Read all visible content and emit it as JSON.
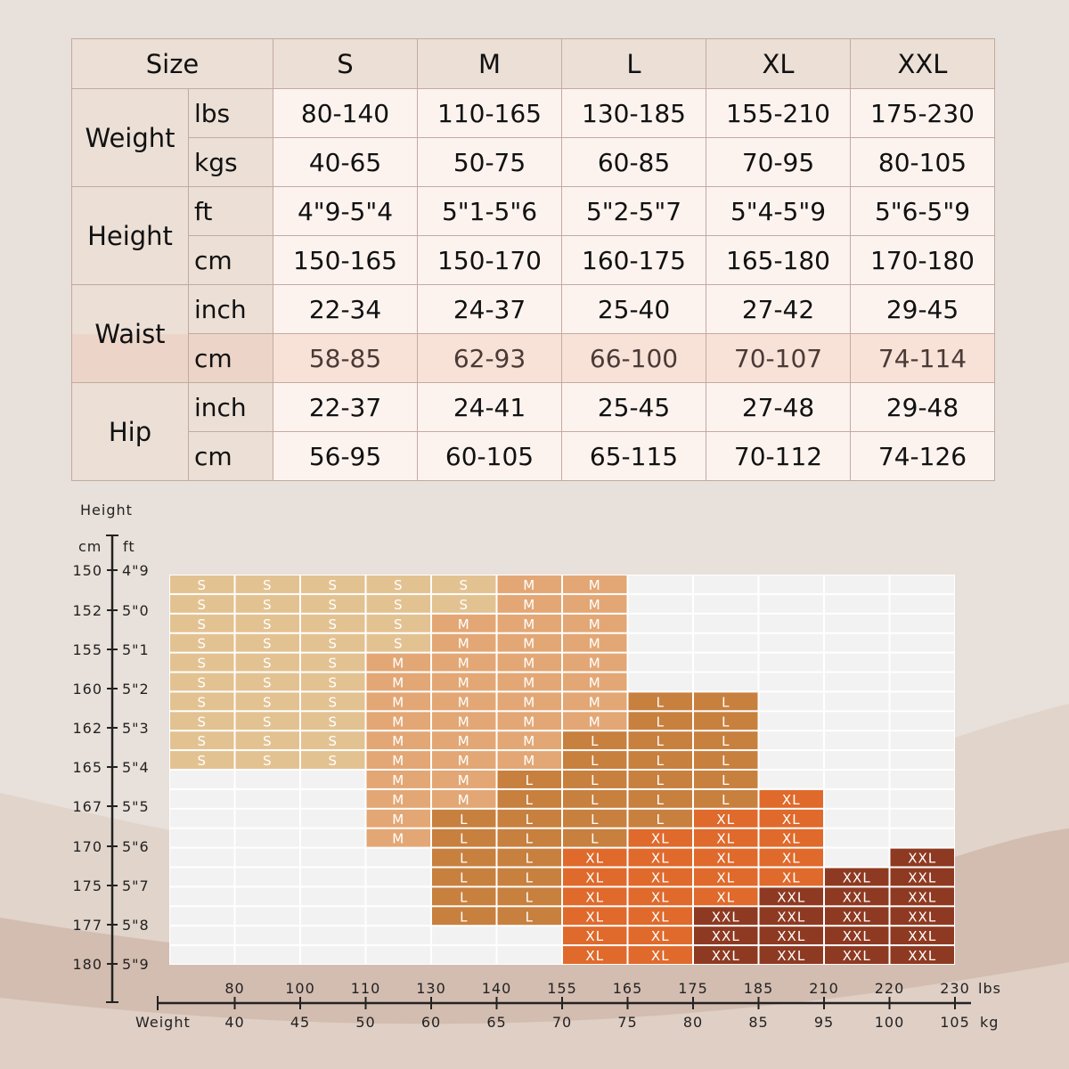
{
  "colors": {
    "background": "#e8e0da",
    "empty_cell": "#f2f2f2",
    "S": "#e3c292",
    "M": "#e3a775",
    "L": "#c8803f",
    "XL": "#df6a2c",
    "XXL": "#8e3a22"
  },
  "size_table": {
    "header_label": "Size",
    "sizes": [
      "S",
      "M",
      "L",
      "XL",
      "XXL"
    ],
    "groups": [
      {
        "name": "Weight",
        "rows": [
          {
            "unit": "lbs",
            "values": [
              "80-140",
              "110-165",
              "130-185",
              "155-210",
              "175-230"
            ]
          },
          {
            "unit": "kgs",
            "values": [
              "40-65",
              "50-75",
              "60-85",
              "70-95",
              "80-105"
            ]
          }
        ]
      },
      {
        "name": "Height",
        "rows": [
          {
            "unit": "ft",
            "values": [
              "4\"9-5\"4",
              "5\"1-5\"6",
              "5\"2-5\"7",
              "5\"4-5\"9",
              "5\"6-5\"9"
            ]
          },
          {
            "unit": "cm",
            "values": [
              "150-165",
              "150-170",
              "160-175",
              "165-180",
              "170-180"
            ]
          }
        ]
      },
      {
        "name": "Waist",
        "rows": [
          {
            "unit": "inch",
            "values": [
              "22-34",
              "24-37",
              "25-40",
              "27-42",
              "29-45"
            ]
          },
          {
            "unit": "cm",
            "values": [
              "58-85",
              "62-93",
              "66-100",
              "70-107",
              "74-114"
            ]
          }
        ]
      },
      {
        "name": "Hip",
        "rows": [
          {
            "unit": "inch",
            "values": [
              "22-37",
              "24-41",
              "25-45",
              "27-48",
              "29-48"
            ]
          },
          {
            "unit": "cm",
            "values": [
              "56-95",
              "60-105",
              "65-115",
              "70-112",
              "74-126"
            ]
          }
        ]
      }
    ]
  },
  "chart_data": {
    "type": "heatmap",
    "ylabel": "Height",
    "y_unit_left": "cm",
    "y_unit_right": "ft",
    "xlabel": "Weight",
    "x_unit_top": "lbs",
    "x_unit_bottom": "kg",
    "y_ticks": [
      {
        "cm": "150",
        "ft": "4\"9"
      },
      {
        "cm": "152",
        "ft": "5\"0"
      },
      {
        "cm": "155",
        "ft": "5\"1"
      },
      {
        "cm": "160",
        "ft": "5\"2"
      },
      {
        "cm": "162",
        "ft": "5\"3"
      },
      {
        "cm": "165",
        "ft": "5\"4"
      },
      {
        "cm": "167",
        "ft": "5\"5"
      },
      {
        "cm": "170",
        "ft": "5\"6"
      },
      {
        "cm": "175",
        "ft": "5\"7"
      },
      {
        "cm": "177",
        "ft": "5\"8"
      },
      {
        "cm": "180",
        "ft": "5\"9"
      }
    ],
    "x_ticks_lbs": [
      "80",
      "100",
      "110",
      "130",
      "140",
      "155",
      "165",
      "175",
      "185",
      "210",
      "220",
      "230"
    ],
    "x_ticks_kg": [
      "40",
      "45",
      "50",
      "60",
      "65",
      "70",
      "75",
      "80",
      "85",
      "95",
      "100",
      "105"
    ],
    "grid": [
      [
        "S",
        "S",
        "S",
        "S",
        "S",
        "M",
        "M",
        "",
        "",
        "",
        "",
        ""
      ],
      [
        "S",
        "S",
        "S",
        "S",
        "S",
        "M",
        "M",
        "",
        "",
        "",
        "",
        ""
      ],
      [
        "S",
        "S",
        "S",
        "S",
        "M",
        "M",
        "M",
        "",
        "",
        "",
        "",
        ""
      ],
      [
        "S",
        "S",
        "S",
        "S",
        "M",
        "M",
        "M",
        "",
        "",
        "",
        "",
        ""
      ],
      [
        "S",
        "S",
        "S",
        "M",
        "M",
        "M",
        "M",
        "",
        "",
        "",
        "",
        ""
      ],
      [
        "S",
        "S",
        "S",
        "M",
        "M",
        "M",
        "M",
        "",
        "",
        "",
        "",
        ""
      ],
      [
        "S",
        "S",
        "S",
        "M",
        "M",
        "M",
        "M",
        "L",
        "L",
        "",
        "",
        ""
      ],
      [
        "S",
        "S",
        "S",
        "M",
        "M",
        "M",
        "M",
        "L",
        "L",
        "",
        "",
        ""
      ],
      [
        "S",
        "S",
        "S",
        "M",
        "M",
        "M",
        "L",
        "L",
        "L",
        "",
        "",
        ""
      ],
      [
        "S",
        "S",
        "S",
        "M",
        "M",
        "M",
        "L",
        "L",
        "L",
        "",
        "",
        ""
      ],
      [
        "",
        "",
        "",
        "M",
        "M",
        "L",
        "L",
        "L",
        "L",
        "",
        "",
        ""
      ],
      [
        "",
        "",
        "",
        "M",
        "M",
        "L",
        "L",
        "L",
        "L",
        "XL",
        "",
        ""
      ],
      [
        "",
        "",
        "",
        "M",
        "L",
        "L",
        "L",
        "L",
        "XL",
        "XL",
        "",
        ""
      ],
      [
        "",
        "",
        "",
        "M",
        "L",
        "L",
        "L",
        "XL",
        "XL",
        "XL",
        "",
        ""
      ],
      [
        "",
        "",
        "",
        "",
        "L",
        "L",
        "XL",
        "XL",
        "XL",
        "XL",
        "",
        "XXL"
      ],
      [
        "",
        "",
        "",
        "",
        "L",
        "L",
        "XL",
        "XL",
        "XL",
        "XL",
        "XXL",
        "XXL"
      ],
      [
        "",
        "",
        "",
        "",
        "L",
        "L",
        "XL",
        "XL",
        "XL",
        "XXL",
        "XXL",
        "XXL"
      ],
      [
        "",
        "",
        "",
        "",
        "L",
        "L",
        "XL",
        "XL",
        "XXL",
        "XXL",
        "XXL",
        "XXL"
      ],
      [
        "",
        "",
        "",
        "",
        "",
        "",
        "XL",
        "XL",
        "XXL",
        "XXL",
        "XXL",
        "XXL"
      ],
      [
        "",
        "",
        "",
        "",
        "",
        "",
        "XL",
        "XL",
        "XXL",
        "XXL",
        "XXL",
        "XXL"
      ]
    ]
  }
}
